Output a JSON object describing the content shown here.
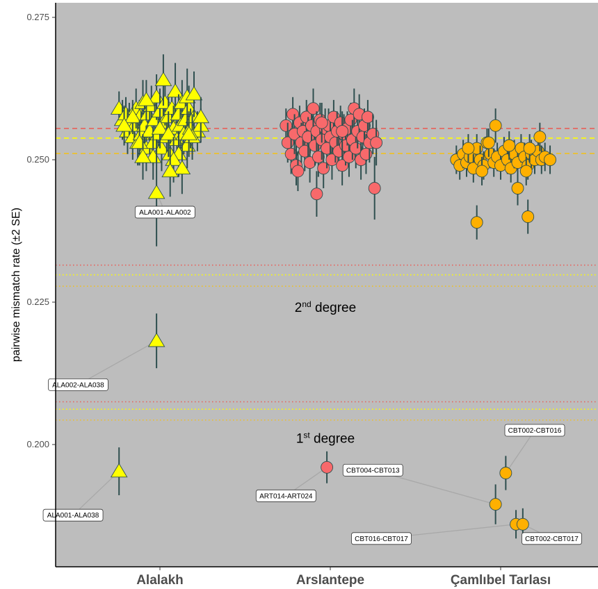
{
  "chart_data": {
    "type": "scatter",
    "title": "",
    "ylabel": "pairwise mismatch rate (±2 SE)",
    "ylim": [
      0.18,
      0.276
    ],
    "yticks": [
      0.2,
      0.225,
      0.25,
      0.275
    ],
    "ytick_labels": [
      "0.200",
      "0.225",
      "0.250",
      "0.275"
    ],
    "categories": [
      "Alalakh",
      "Arslantepe",
      "Çamlıbel Tarlası"
    ],
    "grid": false,
    "background": "#bdbdbd",
    "colors": {
      "Alalakh": "#ffff00",
      "Arslantepe": "#f8696b",
      "Çamlıbel Tarlası": "#ffb000",
      "errorbar": "#2f4f4f"
    },
    "reference_lines": [
      {
        "site": "Arslantepe",
        "kind": "unrelated",
        "y": 0.2555,
        "color": "#e8605a"
      },
      {
        "site": "Alalakh",
        "kind": "unrelated",
        "y": 0.2538,
        "color": "#ffff00"
      },
      {
        "site": "Çamlıbel Tarlası",
        "kind": "unrelated",
        "y": 0.2511,
        "color": "#f0c020"
      },
      {
        "site": "Arslantepe",
        "kind": "2nd",
        "y": 0.2315,
        "color": "#e8605a"
      },
      {
        "site": "Alalakh",
        "kind": "2nd",
        "y": 0.2298,
        "color": "#ffff00"
      },
      {
        "site": "Çamlıbel Tarlası",
        "kind": "2nd",
        "y": 0.2278,
        "color": "#f0c020"
      },
      {
        "site": "Arslantepe",
        "kind": "1st",
        "y": 0.2075,
        "color": "#e8605a"
      },
      {
        "site": "Alalakh",
        "kind": "1st",
        "y": 0.2062,
        "color": "#ffff00"
      },
      {
        "site": "Çamlıbel Tarlası",
        "kind": "1st",
        "y": 0.2043,
        "color": "#f0c020"
      }
    ],
    "annotations": [
      {
        "text": "2",
        "sup": "nd",
        "rest": " degree",
        "y": 0.2233
      },
      {
        "text": "1",
        "sup": "st",
        "rest": " degree",
        "y": 0.2003
      }
    ],
    "labeled_points": [
      {
        "label": "ALA001-ALA002",
        "site": "Alalakh",
        "dx": -0.02,
        "y": 0.2442,
        "se": 0.0094,
        "label_dx": 0.03,
        "label_y": 0.2408
      },
      {
        "label": "ALA002-ALA038",
        "site": "Alalakh",
        "dx": -0.02,
        "y": 0.2182,
        "se": 0.0048,
        "label_dx": -0.48,
        "label_y": 0.2105
      },
      {
        "label": "ALA001-ALA038",
        "site": "Alalakh",
        "dx": -0.24,
        "y": 0.1953,
        "se": 0.0042,
        "label_dx": -0.51,
        "label_y": 0.1876
      },
      {
        "label": "ART014-ART024",
        "site": "Arslantepe",
        "dx": -0.02,
        "y": 0.196,
        "se": 0.0028,
        "label_dx": -0.26,
        "label_y": 0.191
      },
      {
        "label": "CBT002-CBT016",
        "site": "Çamlıbel Tarlası",
        "dx": 0.03,
        "y": 0.195,
        "se": 0.003,
        "label_dx": 0.2,
        "label_y": 0.2025
      },
      {
        "label": "CBT004-CBT013",
        "site": "Çamlıbel Tarlası",
        "dx": -0.03,
        "y": 0.1895,
        "se": 0.0035,
        "label_dx": -0.75,
        "label_y": 0.1955
      },
      {
        "label": "CBT016-CBT017",
        "site": "Çamlıbel Tarlası",
        "dx": 0.09,
        "y": 0.186,
        "se": 0.0025,
        "label_dx": -0.7,
        "label_y": 0.1835
      },
      {
        "label": "CBT002-CBT017",
        "site": "Çamlıbel Tarlası",
        "dx": 0.13,
        "y": 0.186,
        "se": 0.0028,
        "label_dx": 0.3,
        "label_y": 0.1835
      }
    ],
    "series": [
      {
        "site": "Alalakh",
        "shape": "triangle",
        "points": [
          [
            -0.24,
            0.259,
            0.003
          ],
          [
            -0.22,
            0.257,
            0.0035
          ],
          [
            -0.2,
            0.258,
            0.003
          ],
          [
            -0.19,
            0.255,
            0.004
          ],
          [
            -0.18,
            0.2565,
            0.0035
          ],
          [
            -0.16,
            0.254,
            0.004
          ],
          [
            -0.15,
            0.256,
            0.003
          ],
          [
            -0.14,
            0.259,
            0.0035
          ],
          [
            -0.13,
            0.253,
            0.004
          ],
          [
            -0.12,
            0.2575,
            0.003
          ],
          [
            -0.11,
            0.2545,
            0.004
          ],
          [
            -0.1,
            0.26,
            0.004
          ],
          [
            -0.09,
            0.256,
            0.0035
          ],
          [
            -0.08,
            0.252,
            0.004
          ],
          [
            -0.07,
            0.258,
            0.003
          ],
          [
            -0.06,
            0.255,
            0.004
          ],
          [
            -0.05,
            0.2595,
            0.0035
          ],
          [
            -0.04,
            0.253,
            0.004
          ],
          [
            -0.03,
            0.257,
            0.003
          ],
          [
            -0.02,
            0.261,
            0.004
          ],
          [
            -0.01,
            0.2545,
            0.0035
          ],
          [
            0.0,
            0.2585,
            0.004
          ],
          [
            0.01,
            0.252,
            0.004
          ],
          [
            0.02,
            0.2565,
            0.003
          ],
          [
            0.03,
            0.26,
            0.004
          ],
          [
            0.04,
            0.254,
            0.0035
          ],
          [
            0.05,
            0.2575,
            0.004
          ],
          [
            0.06,
            0.251,
            0.004
          ],
          [
            0.07,
            0.259,
            0.003
          ],
          [
            0.08,
            0.2555,
            0.004
          ],
          [
            0.09,
            0.262,
            0.005
          ],
          [
            0.1,
            0.2535,
            0.004
          ],
          [
            0.11,
            0.258,
            0.0035
          ],
          [
            0.12,
            0.256,
            0.004
          ],
          [
            0.13,
            0.26,
            0.004
          ],
          [
            0.14,
            0.2545,
            0.0035
          ],
          [
            0.15,
            0.257,
            0.003
          ],
          [
            0.16,
            0.2525,
            0.004
          ],
          [
            0.17,
            0.259,
            0.004
          ],
          [
            0.18,
            0.2555,
            0.0035
          ],
          [
            0.2,
            0.2575,
            0.004
          ],
          [
            0.22,
            0.255,
            0.0035
          ],
          [
            0.24,
            0.256,
            0.003
          ],
          [
            -0.16,
            0.2575,
            0.003
          ],
          [
            -0.08,
            0.2605,
            0.0035
          ],
          [
            0.0,
            0.2555,
            0.0035
          ],
          [
            0.05,
            0.2545,
            0.004
          ],
          [
            -0.21,
            0.256,
            0.0035
          ],
          [
            0.19,
            0.254,
            0.004
          ],
          [
            0.11,
            0.251,
            0.004
          ],
          [
            -0.12,
            0.253,
            0.004
          ],
          [
            -0.04,
            0.2505,
            0.004
          ],
          [
            0.02,
            0.264,
            0.0045
          ],
          [
            0.08,
            0.25,
            0.004
          ],
          [
            0.13,
            0.2485,
            0.0045
          ],
          [
            0.06,
            0.248,
            0.0045
          ],
          [
            -0.1,
            0.2505,
            0.004
          ],
          [
            0.16,
            0.261,
            0.005
          ],
          [
            0.2,
            0.2615,
            0.004
          ],
          [
            0.24,
            0.2575,
            0.0035
          ],
          [
            0.17,
            0.2545,
            0.004
          ]
        ]
      },
      {
        "site": "Arslantepe",
        "shape": "circle",
        "points": [
          [
            -0.26,
            0.256,
            0.003
          ],
          [
            -0.25,
            0.253,
            0.0035
          ],
          [
            -0.23,
            0.251,
            0.0035
          ],
          [
            -0.22,
            0.258,
            0.003
          ],
          [
            -0.21,
            0.2545,
            0.0035
          ],
          [
            -0.2,
            0.249,
            0.0035
          ],
          [
            -0.19,
            0.248,
            0.0035
          ],
          [
            -0.18,
            0.2565,
            0.003
          ],
          [
            -0.17,
            0.253,
            0.0035
          ],
          [
            -0.16,
            0.255,
            0.003
          ],
          [
            -0.15,
            0.2515,
            0.0035
          ],
          [
            -0.14,
            0.2575,
            0.003
          ],
          [
            -0.13,
            0.254,
            0.0035
          ],
          [
            -0.12,
            0.2495,
            0.0035
          ],
          [
            -0.11,
            0.256,
            0.003
          ],
          [
            -0.1,
            0.259,
            0.0035
          ],
          [
            -0.09,
            0.2525,
            0.0035
          ],
          [
            -0.08,
            0.255,
            0.0035
          ],
          [
            -0.07,
            0.2505,
            0.0035
          ],
          [
            -0.06,
            0.257,
            0.003
          ],
          [
            -0.05,
            0.2535,
            0.0035
          ],
          [
            -0.04,
            0.2485,
            0.0035
          ],
          [
            -0.03,
            0.2555,
            0.0035
          ],
          [
            -0.02,
            0.252,
            0.0035
          ],
          [
            -0.01,
            0.256,
            0.003
          ],
          [
            0.0,
            0.254,
            0.0035
          ],
          [
            0.01,
            0.25,
            0.0035
          ],
          [
            0.02,
            0.2575,
            0.003
          ],
          [
            0.03,
            0.253,
            0.0035
          ],
          [
            0.04,
            0.255,
            0.0035
          ],
          [
            0.05,
            0.2515,
            0.0035
          ],
          [
            0.06,
            0.2565,
            0.003
          ],
          [
            0.07,
            0.249,
            0.0035
          ],
          [
            0.08,
            0.2545,
            0.0035
          ],
          [
            0.09,
            0.2525,
            0.0035
          ],
          [
            0.1,
            0.2555,
            0.003
          ],
          [
            0.11,
            0.2505,
            0.0035
          ],
          [
            0.12,
            0.257,
            0.003
          ],
          [
            0.13,
            0.2535,
            0.0035
          ],
          [
            0.14,
            0.259,
            0.0035
          ],
          [
            0.15,
            0.252,
            0.0035
          ],
          [
            0.16,
            0.255,
            0.003
          ],
          [
            0.17,
            0.258,
            0.0035
          ],
          [
            0.18,
            0.25,
            0.0035
          ],
          [
            0.19,
            0.254,
            0.0035
          ],
          [
            0.2,
            0.256,
            0.003
          ],
          [
            0.21,
            0.251,
            0.0035
          ],
          [
            0.22,
            0.2575,
            0.003
          ],
          [
            0.23,
            0.253,
            0.0035
          ],
          [
            0.25,
            0.2545,
            0.0035
          ],
          [
            0.27,
            0.253,
            0.004
          ],
          [
            -0.08,
            0.244,
            0.004
          ],
          [
            0.26,
            0.245,
            0.0055
          ],
          [
            -0.05,
            0.2565,
            0.0035
          ],
          [
            0.07,
            0.255,
            0.0035
          ]
        ]
      },
      {
        "site": "Çamlıbel Tarlası",
        "shape": "circle",
        "points": [
          [
            -0.26,
            0.25,
            0.0025
          ],
          [
            -0.24,
            0.249,
            0.0025
          ],
          [
            -0.22,
            0.251,
            0.0025
          ],
          [
            -0.2,
            0.2495,
            0.0025
          ],
          [
            -0.18,
            0.2505,
            0.0025
          ],
          [
            -0.16,
            0.2485,
            0.0025
          ],
          [
            -0.14,
            0.252,
            0.0025
          ],
          [
            -0.12,
            0.25,
            0.0025
          ],
          [
            -0.1,
            0.249,
            0.0025
          ],
          [
            -0.08,
            0.253,
            0.0025
          ],
          [
            -0.06,
            0.251,
            0.0025
          ],
          [
            -0.04,
            0.2495,
            0.0025
          ],
          [
            -0.02,
            0.2505,
            0.0025
          ],
          [
            0.0,
            0.249,
            0.0025
          ],
          [
            0.02,
            0.2515,
            0.0025
          ],
          [
            0.04,
            0.25,
            0.0025
          ],
          [
            0.06,
            0.2485,
            0.0025
          ],
          [
            0.08,
            0.251,
            0.0025
          ],
          [
            0.1,
            0.2495,
            0.0025
          ],
          [
            0.12,
            0.252,
            0.0025
          ],
          [
            0.14,
            0.2505,
            0.0025
          ],
          [
            0.16,
            0.249,
            0.0025
          ],
          [
            0.18,
            0.251,
            0.0025
          ],
          [
            0.2,
            0.25,
            0.0025
          ],
          [
            0.22,
            0.2515,
            0.0025
          ],
          [
            0.24,
            0.25,
            0.0025
          ],
          [
            0.26,
            0.2505,
            0.0025
          ],
          [
            0.29,
            0.25,
            0.0025
          ],
          [
            -0.11,
            0.248,
            0.0025
          ],
          [
            -0.07,
            0.253,
            0.0025
          ],
          [
            0.05,
            0.2525,
            0.0025
          ],
          [
            0.15,
            0.248,
            0.0025
          ],
          [
            -0.03,
            0.256,
            0.003
          ],
          [
            0.23,
            0.254,
            0.0025
          ],
          [
            0.17,
            0.252,
            0.0025
          ],
          [
            -0.19,
            0.252,
            0.0025
          ],
          [
            -0.14,
            0.239,
            0.003
          ],
          [
            0.1,
            0.245,
            0.003
          ],
          [
            0.16,
            0.24,
            0.003
          ]
        ]
      }
    ]
  }
}
